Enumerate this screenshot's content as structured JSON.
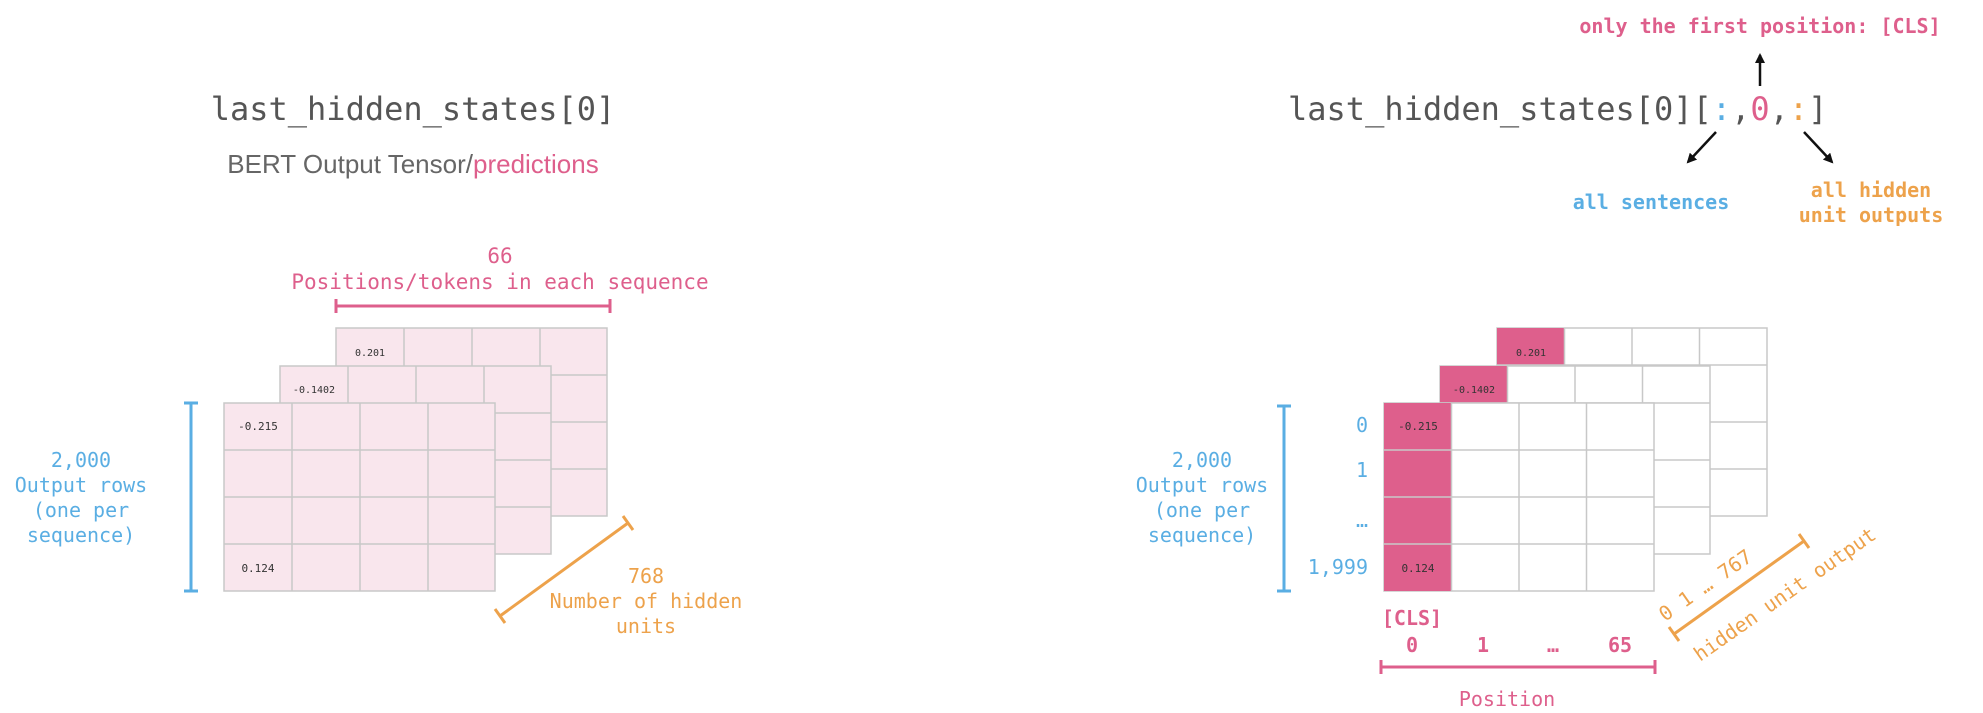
{
  "colors": {
    "pink": "#de5f8c",
    "pink_fill": "#f9e6ed",
    "blue": "#5aaee3",
    "orange": "#eda24b",
    "gray_text": "#555555",
    "grid": "#c8c8c8"
  },
  "left": {
    "code": "last_hidden_states[0]",
    "subtitle_prefix": "BERT Output Tensor/",
    "subtitle_highlight": "predictions",
    "positions_count": "66",
    "positions_label": "Positions/tokens in each sequence",
    "rows_count": "2,000",
    "rows_line1": "Output rows",
    "rows_line2": "(one per",
    "rows_line3": "sequence)",
    "hidden_count": "768",
    "hidden_line1": "Number of hidden",
    "hidden_line2": "units",
    "value_front_tl": "-0.215",
    "value_front_bl": "0.124",
    "value_mid_tl": "-0.1402",
    "value_back_tl": "0.201"
  },
  "right": {
    "code_prefix": "last_hidden_states[0][",
    "code_colon1": ":",
    "code_comma1": ",",
    "code_zero": "0",
    "code_comma2": ",",
    "code_colon2": ":",
    "code_suffix": "]",
    "first_position_label": "only the first position: [CLS]",
    "all_sentences_label": "all sentences",
    "all_hidden_line1": "all hidden",
    "all_hidden_line2": "unit outputs",
    "rows_count": "2,000",
    "rows_line1": "Output rows",
    "rows_line2": "(one per",
    "rows_line3": "sequence)",
    "row_labels": [
      "0",
      "1",
      "…",
      "1,999"
    ],
    "cls_label": "[CLS]",
    "position_labels": [
      "0",
      "1",
      "…",
      "65"
    ],
    "position_axis": "Position",
    "hidden_ticks": "0     1  … 767",
    "hidden_axis": "hidden unit output",
    "value_front_tl": "-0.215",
    "value_front_bl": "0.124",
    "value_mid_tl": "-0.1402",
    "value_back_tl": "0.201"
  }
}
